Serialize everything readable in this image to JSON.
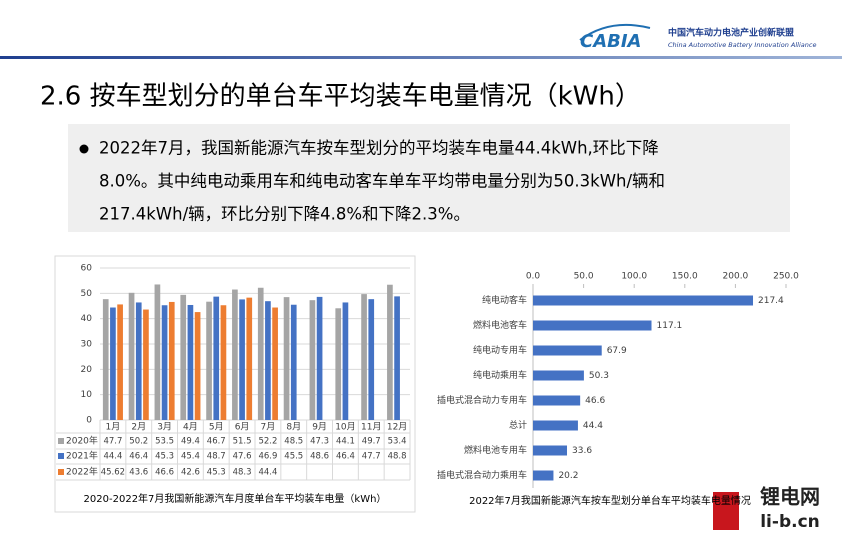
{
  "header": {
    "logo": "CABIA",
    "org_cn": "中国汽车动力电池产业创新联盟",
    "org_en": "China Automotive Battery Innovation Alliance"
  },
  "title": "2.6 按车型划分的单台车平均装车电量情况（kWh）",
  "bullet": {
    "lines": [
      "2022年7月，我国新能源汽车按车型划分的平均装车电量44.4kWh,环比下降",
      "8.0%。其中纯电动乘用车和纯电动客车单车平均带电量分别为50.3kWh/辆和",
      "217.4kWh/辆，环比分别下降4.8%和下降2.3%。"
    ]
  },
  "watermark": {
    "cn": "锂电网",
    "url": "li-b.cn"
  },
  "chart_data": [
    {
      "type": "bar",
      "orientation": "vertical",
      "title": "2020-2022年7月我国新能源汽车月度单台车平均装车电量（kWh）",
      "categories": [
        "1月",
        "2月",
        "3月",
        "4月",
        "5月",
        "6月",
        "7月",
        "8月",
        "9月",
        "10月",
        "11月",
        "12月"
      ],
      "series": [
        {
          "name": "2020年",
          "color": "#a5a5a5",
          "values": [
            47.7,
            50.2,
            53.5,
            49.4,
            46.7,
            51.5,
            52.2,
            48.5,
            47.3,
            44.1,
            49.7,
            53.4
          ]
        },
        {
          "name": "2021年",
          "color": "#4472c4",
          "values": [
            44.4,
            46.4,
            45.3,
            45.4,
            48.7,
            47.6,
            46.9,
            45.5,
            48.6,
            46.4,
            47.7,
            48.8
          ]
        },
        {
          "name": "2022年",
          "color": "#ed7d31",
          "values": [
            45.62,
            43.6,
            46.6,
            42.6,
            45.3,
            48.3,
            44.4,
            null,
            null,
            null,
            null,
            null
          ]
        }
      ],
      "ylim": [
        0,
        60
      ],
      "yticks": [
        0,
        10,
        20,
        30,
        40,
        50,
        60
      ],
      "grid": true,
      "data_table": true
    },
    {
      "type": "bar",
      "orientation": "horizontal",
      "title": "2022年7月我国新能源汽车按车型划分单台车平均装车电量情况",
      "categories": [
        "纯电动客车",
        "燃料电池客车",
        "纯电动专用车",
        "纯电动乘用车",
        "插电式混合动力专用车",
        "总计",
        "燃料电池专用车",
        "插电式混合动力乘用车"
      ],
      "values": [
        217.4,
        117.1,
        67.9,
        50.3,
        46.6,
        44.4,
        33.6,
        20.2
      ],
      "color": "#4472c4",
      "xlim": [
        0,
        250
      ],
      "xticks": [
        {
          "value": 0,
          "label": "0.0"
        },
        {
          "value": 50,
          "label": "50.0"
        },
        {
          "value": 100,
          "label": "100.0"
        },
        {
          "value": 150,
          "label": "150.0"
        },
        {
          "value": 200,
          "label": "200.0"
        },
        {
          "value": 250,
          "label": "250.0"
        }
      ]
    }
  ]
}
